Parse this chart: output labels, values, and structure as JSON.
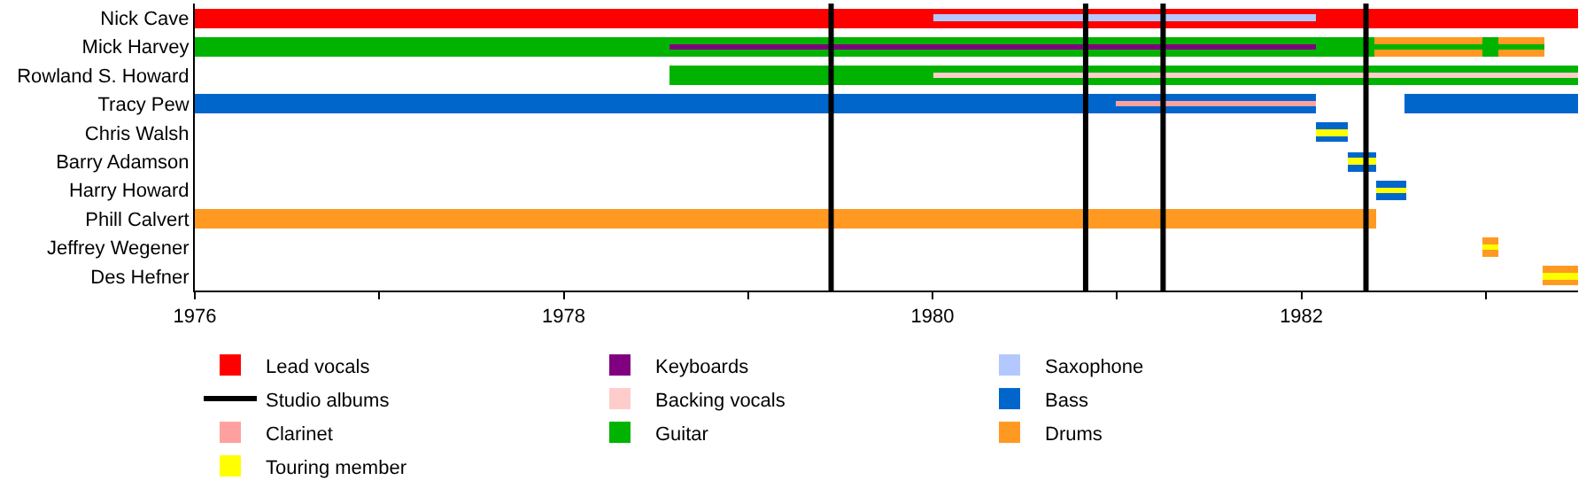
{
  "chart_data": {
    "type": "bar",
    "orientation": "horizontal",
    "legend": "bottom",
    "categories": [
      "Nick Cave",
      "Mick Harvey",
      "Rowland S. Howard",
      "Tracy Pew",
      "Chris Walsh",
      "Barry Adamson",
      "Harry Howard",
      "Phill Calvert",
      "Jeffrey Wegener",
      "Des Hefner"
    ],
    "xlim": [
      1976,
      1983.5
    ],
    "xticks": [
      1976,
      {
        "value": 1977,
        "label": null
      },
      1978,
      {
        "value": 1979,
        "label": null
      },
      1980,
      {
        "value": 1981,
        "label": null
      },
      1982,
      {
        "value": 1983,
        "label": null
      }
    ],
    "series": [
      {
        "name": "Lead vocals",
        "color": "#ff0000",
        "base": [
          1976,
          null,
          null,
          null,
          null,
          null,
          null,
          null,
          null,
          null
        ],
        "values": [
          7.5,
          null,
          null,
          null,
          null,
          null,
          null,
          null,
          null,
          null
        ]
      },
      {
        "name": "Backing vocals",
        "color": "#ffcccc",
        "base": [
          null,
          null,
          1980,
          null,
          null,
          null,
          null,
          null,
          null,
          null
        ],
        "values": [
          null,
          null,
          3.5,
          null,
          null,
          null,
          null,
          null,
          null,
          null
        ]
      },
      {
        "name": "Guitar",
        "color": "#00b300",
        "base": [
          null,
          1976,
          1978.57,
          null,
          null,
          null,
          null,
          null,
          null,
          null
        ],
        "values": [
          null,
          6.4,
          4.93,
          null,
          null,
          null,
          null,
          null,
          null,
          null
        ]
      },
      {
        "name": "Keyboards",
        "color": "#800080",
        "base": [
          null,
          1978.57,
          null,
          null,
          null,
          null,
          null,
          null,
          null,
          null
        ],
        "values": [
          null,
          3.51,
          null,
          null,
          null,
          null,
          null,
          null,
          null,
          null
        ]
      },
      {
        "name": "Bass",
        "color": "#0066cc",
        "base": [
          null,
          null,
          null,
          1976,
          1982.08,
          1982.25,
          1982.41,
          null,
          null,
          null
        ],
        "values": [
          null,
          null,
          null,
          6.08,
          0.17,
          0.16,
          0.16,
          null,
          null,
          null
        ]
      },
      {
        "name": "Drums",
        "color": "#ff9922",
        "base": [
          null,
          1982.4,
          null,
          null,
          null,
          null,
          null,
          1976,
          1982.98,
          1983.31
        ],
        "values": [
          null,
          0.58,
          null,
          null,
          null,
          null,
          null,
          6.41,
          0.09,
          0.19
        ]
      },
      {
        "name": "Saxophone",
        "color": "#b3c8ff",
        "base": [
          1980,
          null,
          null,
          null,
          null,
          null,
          null,
          null,
          null,
          null
        ],
        "values": [
          2.08,
          null,
          null,
          null,
          null,
          null,
          null,
          null,
          null,
          null
        ]
      },
      {
        "name": "Clarinet",
        "color": "#ffa0a0",
        "base": [
          null,
          null,
          null,
          1980.99,
          null,
          null,
          null,
          null,
          null,
          null
        ],
        "values": [
          null,
          null,
          null,
          1.09,
          null,
          null,
          null,
          null,
          null,
          null
        ]
      },
      {
        "name": "Touring member",
        "color": "#ffff00",
        "base": [
          null,
          null,
          null,
          null,
          1982.08,
          1982.25,
          1982.41,
          null,
          1982.98,
          1983.31
        ],
        "values": [
          null,
          null,
          null,
          null,
          0.17,
          0.16,
          0.16,
          null,
          0.09,
          0.19
        ]
      },
      {
        "color": "#0066cc",
        "base": [
          null,
          null,
          null,
          1982.56,
          null,
          null,
          null,
          null,
          null,
          null
        ],
        "values": [
          null,
          null,
          null,
          0.94,
          null,
          null,
          null,
          null,
          null,
          null
        ]
      },
      {
        "color": "#ff9922",
        "base": [
          null,
          1983.07,
          null,
          null,
          null,
          null,
          null,
          null,
          null,
          null
        ],
        "values": [
          null,
          0.25,
          null,
          null,
          null,
          null,
          null,
          null,
          null,
          null
        ]
      },
      {
        "color": "#00b300",
        "base": [
          null,
          1982.4,
          null,
          null,
          null,
          null,
          null,
          null,
          null,
          null
        ],
        "values": [
          null,
          0.58,
          null,
          null,
          null,
          null,
          null,
          null,
          null,
          null
        ]
      },
      {
        "color": "#00b300",
        "base": [
          null,
          1982.98,
          null,
          null,
          null,
          null,
          null,
          null,
          null,
          null
        ],
        "values": [
          null,
          0.09,
          null,
          null,
          null,
          null,
          null,
          null,
          null,
          null
        ]
      },
      {
        "color": "#00b300",
        "base": [
          null,
          1983.07,
          null,
          null,
          null,
          null,
          null,
          null,
          null,
          null
        ],
        "values": [
          null,
          0.25,
          null,
          null,
          null,
          null,
          null,
          null,
          null,
          null
        ]
      }
    ],
    "ref_lines": [
      {
        "axis": "x",
        "value": 1979.45,
        "label": "Studio albums",
        "color": "#000000"
      },
      {
        "axis": "x",
        "value": 1980.83,
        "color": "#000000"
      },
      {
        "axis": "x",
        "value": 1981.25,
        "color": "#000000"
      },
      {
        "axis": "x",
        "value": 1982.35,
        "color": "#000000"
      }
    ]
  }
}
